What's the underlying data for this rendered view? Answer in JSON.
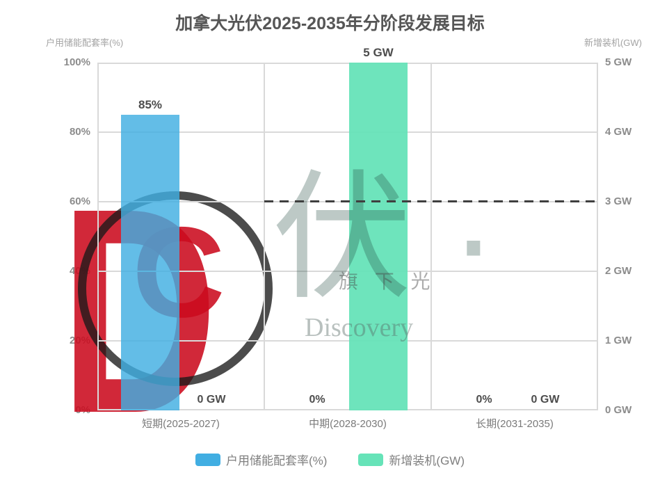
{
  "title": "加拿大光伏2025-2035年分阶段发展目标",
  "axes": {
    "left_name": "户用储能配套率(%)",
    "right_name": "新增装机(GW)",
    "left_ticks": [
      "0%",
      "20%",
      "40%",
      "60%",
      "80%",
      "100%"
    ],
    "right_ticks": [
      "0 GW",
      "1 GW",
      "2 GW",
      "3 GW",
      "4 GW",
      "5 GW"
    ]
  },
  "chart_data": {
    "type": "bar",
    "title": "加拿大光伏2025-2035年分阶段发展目标",
    "categories": [
      "短期(2025-2027)",
      "中期(2028-2030)",
      "长期(2031-2035)"
    ],
    "series": [
      {
        "name": "户用储能配套率(%)",
        "axis": "left",
        "unit": "%",
        "values": [
          85,
          0,
          0
        ],
        "labels": [
          "85%",
          "0%",
          "0%"
        ],
        "color": "#41AEE2"
      },
      {
        "name": "新增装机(GW)",
        "axis": "right",
        "unit": "GW",
        "values": [
          0,
          5,
          0
        ],
        "labels": [
          "0 GW",
          "5 GW",
          "0 GW"
        ],
        "color": "#66E3B8"
      }
    ],
    "y_left": {
      "min": 0,
      "max": 100,
      "unit": "%"
    },
    "y_right": {
      "min": 0,
      "max": 5,
      "unit": "GW"
    },
    "grid": true,
    "legend_position": "bottom",
    "reference_line": {
      "axis": "left",
      "value": 60,
      "style": "dashed",
      "start_category_index": 1
    }
  },
  "legend": [
    {
      "label": "户用储能配套率(%)",
      "color": "#41AEE2"
    },
    {
      "label": "新增装机(GW)",
      "color": "#66E3B8"
    }
  ],
  "watermark": {
    "logo_letter": "D",
    "logo_inner_letter": "C",
    "logo_color": "#CB0A1E",
    "big_text": "伏 ·",
    "small_text_cn": "旗 下 光",
    "small_text_en": "Discovery"
  }
}
